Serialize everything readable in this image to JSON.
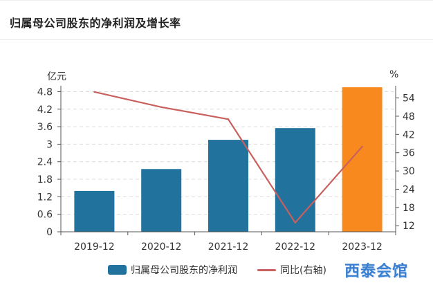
{
  "panel": {
    "title": "归属母公司股东的净利润及增长率"
  },
  "watermark": "西泰会馆",
  "chart_data": {
    "type": "bar+line",
    "categories": [
      "2019-12",
      "2020-12",
      "2021-12",
      "2022-12",
      "2023-12"
    ],
    "series": [
      {
        "name": "归属母公司股东的净利润",
        "type": "bar",
        "axis": "left",
        "values": [
          1.4,
          2.15,
          3.15,
          3.55,
          4.95
        ],
        "colors": [
          "#21729d",
          "#21729d",
          "#21729d",
          "#21729d",
          "#f7891e"
        ]
      },
      {
        "name": "同比(右轴)",
        "type": "line",
        "axis": "right",
        "values": [
          56.0,
          51.0,
          47.0,
          13.0,
          38.0
        ],
        "color": "#c8605e"
      }
    ],
    "left_axis": {
      "unit": "亿元",
      "ticks": [
        "0",
        "0.6",
        "1.2",
        "1.8",
        "2.4",
        "3",
        "3.6",
        "4.2",
        "4.8"
      ],
      "range": [
        0,
        5.0
      ]
    },
    "right_axis": {
      "unit": "%",
      "ticks": [
        "12",
        "18",
        "24",
        "30",
        "36",
        "42",
        "48",
        "54"
      ],
      "range": [
        10,
        58
      ]
    },
    "grid": true,
    "legend_position": "bottom"
  }
}
